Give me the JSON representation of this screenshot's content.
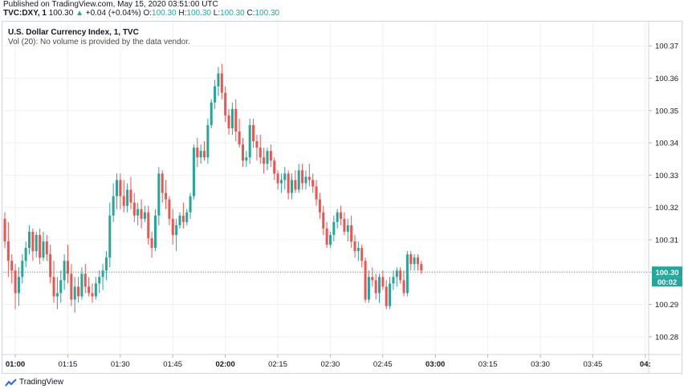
{
  "header": {
    "published": "Published on TradingView.com, May 15, 2020 03:51:00 UTC",
    "symbol": "TVC:DXY, 1",
    "last": "100.30",
    "change_arrow": "▲",
    "change": "+0.04 (+0.04%)",
    "o_label": "O:",
    "o_val": "100.30",
    "h_label": "H:",
    "h_val": "100.30",
    "l_label": "L:",
    "l_val": "100.30",
    "c_label": "C:",
    "c_val": "100.30"
  },
  "legend": {
    "title": "U.S. Dollar Currency Index, 1, TVC",
    "vol": "Vol (20): No volume is provided by the data vendor."
  },
  "footer": {
    "brand": "TradingView"
  },
  "colors": {
    "up": "#26a69a",
    "down": "#ef5350",
    "grid": "#eef0f3",
    "axis": "#131722"
  },
  "chart_data": {
    "type": "candlestick",
    "title": "U.S. Dollar Currency Index, 1, TVC",
    "ylim": [
      100.275,
      100.3775
    ],
    "yticks": [
      "100.28",
      "100.29",
      "100.30",
      "100.31",
      "100.32",
      "100.33",
      "100.34",
      "100.35",
      "100.36",
      "100.37"
    ],
    "xtick_labels": [
      "01:00",
      "01:15",
      "01:30",
      "01:45",
      "02:00",
      "02:15",
      "02:30",
      "02:45",
      "03:00",
      "03:15",
      "03:30",
      "03:45",
      "04:"
    ],
    "xtick_bold": [
      true,
      false,
      false,
      false,
      true,
      false,
      false,
      false,
      true,
      false,
      false,
      false,
      true
    ],
    "xtick_minutes": [
      0,
      15,
      30,
      45,
      60,
      75,
      90,
      105,
      120,
      135,
      150,
      165,
      180
    ],
    "current_price": "100.30",
    "countdown": "00:02",
    "current_value": 100.3,
    "candles": [
      [
        100.3165,
        100.3185,
        100.3075,
        100.3095
      ],
      [
        100.3095,
        100.3155,
        100.2985,
        100.3035
      ],
      [
        100.3035,
        100.3055,
        100.2965,
        100.3005
      ],
      [
        100.3005,
        100.3025,
        100.2885,
        100.2935
      ],
      [
        100.2935,
        100.3015,
        100.2895,
        100.2985
      ],
      [
        100.2985,
        100.3055,
        100.2965,
        100.3035
      ],
      [
        100.3035,
        100.3095,
        100.3015,
        100.3075
      ],
      [
        100.3075,
        100.3145,
        100.3055,
        100.3125
      ],
      [
        100.3125,
        100.3135,
        100.3035,
        100.3065
      ],
      [
        100.3065,
        100.3125,
        100.3045,
        100.3115
      ],
      [
        100.3115,
        100.3135,
        100.3025,
        100.3045
      ],
      [
        100.3045,
        100.3125,
        100.3035,
        100.3095
      ],
      [
        100.3095,
        100.3115,
        100.3035,
        100.3055
      ],
      [
        100.3055,
        100.3085,
        100.2965,
        100.2985
      ],
      [
        100.2985,
        100.3035,
        100.2905,
        100.2925
      ],
      [
        100.2925,
        100.2985,
        100.2885,
        100.2935
      ],
      [
        100.2935,
        100.3005,
        100.2905,
        100.2975
      ],
      [
        100.2975,
        100.3055,
        100.2945,
        100.3035
      ],
      [
        100.3035,
        100.3085,
        100.2965,
        100.2995
      ],
      [
        100.2995,
        100.3025,
        100.2895,
        100.2915
      ],
      [
        100.2915,
        100.2985,
        100.2875,
        100.2955
      ],
      [
        100.2955,
        100.2985,
        100.2905,
        100.2925
      ],
      [
        100.2925,
        100.3015,
        100.2915,
        100.2995
      ],
      [
        100.2995,
        100.3025,
        100.2935,
        100.2955
      ],
      [
        100.2955,
        100.2985,
        100.2925,
        100.2935
      ],
      [
        100.2935,
        100.2965,
        100.2905,
        100.2925
      ],
      [
        100.2925,
        100.2985,
        100.2915,
        100.2965
      ],
      [
        100.2965,
        100.3005,
        100.2935,
        100.2985
      ],
      [
        100.2985,
        100.3025,
        100.2945,
        100.3005
      ],
      [
        100.3005,
        100.3065,
        100.2975,
        100.3045
      ],
      [
        100.3045,
        100.3215,
        100.3015,
        100.3175
      ],
      [
        100.3175,
        100.3275,
        100.3155,
        100.3235
      ],
      [
        100.3235,
        100.3305,
        100.3195,
        100.3285
      ],
      [
        100.3285,
        100.3305,
        100.3195,
        100.3235
      ],
      [
        100.3235,
        100.3285,
        100.3185,
        100.3205
      ],
      [
        100.3205,
        100.3275,
        100.3185,
        100.3255
      ],
      [
        100.3255,
        100.3295,
        100.3195,
        100.3215
      ],
      [
        100.3215,
        100.3245,
        100.3155,
        100.3175
      ],
      [
        100.3175,
        100.3215,
        100.3145,
        100.3195
      ],
      [
        100.3195,
        100.3225,
        100.3135,
        100.3165
      ],
      [
        100.3165,
        100.3205,
        100.3155,
        100.3185
      ],
      [
        100.3185,
        100.3205,
        100.3085,
        100.3105
      ],
      [
        100.3105,
        100.3125,
        100.3045,
        100.3075
      ],
      [
        100.3075,
        100.3195,
        100.3065,
        100.3175
      ],
      [
        100.3175,
        100.3325,
        100.3145,
        100.3305
      ],
      [
        100.3305,
        100.3315,
        100.3215,
        100.3245
      ],
      [
        100.3245,
        100.3285,
        100.3195,
        100.3225
      ],
      [
        100.3225,
        100.3235,
        100.3145,
        100.3165
      ],
      [
        100.3165,
        100.3195,
        100.3085,
        100.3115
      ],
      [
        100.3115,
        100.3165,
        100.3065,
        100.3145
      ],
      [
        100.3145,
        100.3185,
        100.3135,
        100.3175
      ],
      [
        100.3175,
        100.3215,
        100.3135,
        100.3155
      ],
      [
        100.3155,
        100.3195,
        100.3145,
        100.3185
      ],
      [
        100.3185,
        100.3245,
        100.3165,
        100.3235
      ],
      [
        100.3235,
        100.3395,
        100.3225,
        100.3385
      ],
      [
        100.3385,
        100.3415,
        100.3325,
        100.3355
      ],
      [
        100.3355,
        100.3395,
        100.3335,
        100.3375
      ],
      [
        100.3375,
        100.3405,
        100.3345,
        100.3355
      ],
      [
        100.3355,
        100.3475,
        100.3335,
        100.3455
      ],
      [
        100.3455,
        100.3535,
        100.3445,
        100.3525
      ],
      [
        100.3525,
        100.3595,
        100.3505,
        100.3575
      ],
      [
        100.3575,
        100.3635,
        100.3545,
        100.3615
      ],
      [
        100.3615,
        100.3645,
        100.3535,
        100.3555
      ],
      [
        100.3555,
        100.3575,
        100.3465,
        100.3485
      ],
      [
        100.3485,
        100.3505,
        100.3425,
        100.3445
      ],
      [
        100.3445,
        100.3525,
        100.3425,
        100.3505
      ],
      [
        100.3505,
        100.3535,
        100.3405,
        100.3435
      ],
      [
        100.3435,
        100.3475,
        100.3385,
        100.3395
      ],
      [
        100.3395,
        100.3415,
        100.3325,
        100.3345
      ],
      [
        100.3345,
        100.3375,
        100.3325,
        100.3355
      ],
      [
        100.3355,
        100.3475,
        100.3335,
        100.3455
      ],
      [
        100.3455,
        100.3475,
        100.3385,
        100.3405
      ],
      [
        100.3405,
        100.3425,
        100.3345,
        100.3385
      ],
      [
        100.3385,
        100.3425,
        100.3335,
        100.3355
      ],
      [
        100.3355,
        100.3385,
        100.3305,
        100.3335
      ],
      [
        100.3335,
        100.3385,
        100.3315,
        100.3375
      ],
      [
        100.3375,
        100.3395,
        100.3325,
        100.3345
      ],
      [
        100.3345,
        100.3355,
        100.3285,
        100.3305
      ],
      [
        100.3305,
        100.3315,
        100.3255,
        100.3275
      ],
      [
        100.3275,
        100.3305,
        100.3245,
        100.3285
      ],
      [
        100.3285,
        100.3325,
        100.3255,
        100.3305
      ],
      [
        100.3305,
        100.3315,
        100.3225,
        100.3245
      ],
      [
        100.3245,
        100.3305,
        100.3225,
        100.3285
      ],
      [
        100.3285,
        100.3315,
        100.3245,
        100.3255
      ],
      [
        100.3255,
        100.3335,
        100.3245,
        100.3315
      ],
      [
        100.3315,
        100.3335,
        100.3255,
        100.3275
      ],
      [
        100.3275,
        100.3315,
        100.3255,
        100.3295
      ],
      [
        100.3295,
        100.3335,
        100.3265,
        100.3285
      ],
      [
        100.3285,
        100.3305,
        100.3245,
        100.3265
      ],
      [
        100.3265,
        100.3285,
        100.3205,
        100.3225
      ],
      [
        100.3225,
        100.3245,
        100.3165,
        100.3185
      ],
      [
        100.3185,
        100.3205,
        100.3115,
        100.3135
      ],
      [
        100.3135,
        100.3155,
        100.3075,
        100.3085
      ],
      [
        100.3085,
        100.3125,
        100.3075,
        100.3115
      ],
      [
        100.3115,
        100.3175,
        100.3095,
        100.3155
      ],
      [
        100.3155,
        100.3195,
        100.3135,
        100.3185
      ],
      [
        100.3185,
        100.3205,
        100.3145,
        100.3165
      ],
      [
        100.3165,
        100.3185,
        100.3115,
        100.3125
      ],
      [
        100.3125,
        100.3165,
        100.3095,
        100.3145
      ],
      [
        100.3145,
        100.3175,
        100.3075,
        100.3095
      ],
      [
        100.3095,
        100.3115,
        100.3045,
        100.3065
      ],
      [
        100.3065,
        100.3095,
        100.3035,
        100.3075
      ],
      [
        100.3075,
        100.3085,
        100.3015,
        100.3035
      ],
      [
        100.3035,
        100.3045,
        100.2905,
        100.2915
      ],
      [
        100.2915,
        100.3005,
        100.2905,
        100.2985
      ],
      [
        100.2985,
        100.3015,
        100.2955,
        100.2975
      ],
      [
        100.2975,
        100.2995,
        100.2915,
        100.2935
      ],
      [
        100.2935,
        100.2995,
        100.2905,
        100.2985
      ],
      [
        100.2985,
        100.3005,
        100.2945,
        100.2955
      ],
      [
        100.2955,
        100.2975,
        100.2885,
        100.2895
      ],
      [
        100.2895,
        100.2985,
        100.2885,
        100.2965
      ],
      [
        100.2965,
        100.3005,
        100.2945,
        100.2985
      ],
      [
        100.2985,
        100.3015,
        100.2955,
        100.3005
      ],
      [
        100.3005,
        100.3015,
        100.2965,
        100.2975
      ],
      [
        100.2975,
        100.3005,
        100.2925,
        100.2935
      ],
      [
        100.2935,
        100.3065,
        100.2925,
        100.3055
      ],
      [
        100.3055,
        100.3065,
        100.3005,
        100.3025
      ],
      [
        100.3025,
        100.3055,
        100.3005,
        100.3045
      ],
      [
        100.3045,
        100.3055,
        100.3005,
        100.3025
      ],
      [
        100.3025,
        100.3035,
        100.2995,
        100.3005
      ]
    ]
  }
}
